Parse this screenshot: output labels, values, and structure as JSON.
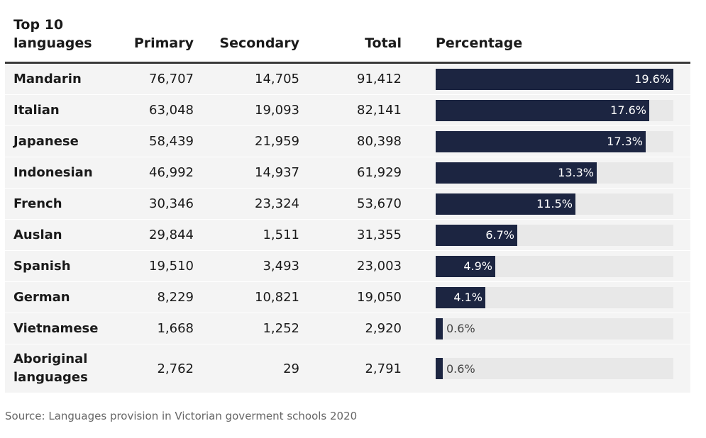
{
  "chart_data": {
    "type": "table",
    "title": "Top 10 languages",
    "columns": [
      "Top 10 languages",
      "Primary",
      "Secondary",
      "Total",
      "Percentage"
    ],
    "rows": [
      {
        "language": "Mandarin",
        "primary": "76,707",
        "secondary": "14,705",
        "total": "91,412",
        "percentage": 19.6,
        "percentage_label": "19.6%"
      },
      {
        "language": "Italian",
        "primary": "63,048",
        "secondary": "19,093",
        "total": "82,141",
        "percentage": 17.6,
        "percentage_label": "17.6%"
      },
      {
        "language": "Japanese",
        "primary": "58,439",
        "secondary": "21,959",
        "total": "80,398",
        "percentage": 17.3,
        "percentage_label": "17.3%"
      },
      {
        "language": "Indonesian",
        "primary": "46,992",
        "secondary": "14,937",
        "total": "61,929",
        "percentage": 13.3,
        "percentage_label": "13.3%"
      },
      {
        "language": "French",
        "primary": "30,346",
        "secondary": "23,324",
        "total": "53,670",
        "percentage": 11.5,
        "percentage_label": "11.5%"
      },
      {
        "language": "Auslan",
        "primary": "29,844",
        "secondary": "1,511",
        "total": "31,355",
        "percentage": 6.7,
        "percentage_label": "6.7%"
      },
      {
        "language": "Spanish",
        "primary": "19,510",
        "secondary": "3,493",
        "total": "23,003",
        "percentage": 4.9,
        "percentage_label": "4.9%"
      },
      {
        "language": "German",
        "primary": "8,229",
        "secondary": "10,821",
        "total": "19,050",
        "percentage": 4.1,
        "percentage_label": "4.1%"
      },
      {
        "language": "Vietnamese",
        "primary": "1,668",
        "secondary": "1,252",
        "total": "2,920",
        "percentage": 0.6,
        "percentage_label": "0.6%"
      },
      {
        "language": "Aboriginal languages",
        "primary": "2,762",
        "secondary": "29",
        "total": "2,791",
        "percentage": 0.6,
        "percentage_label": "0.6%"
      }
    ],
    "bar_max": 19.6,
    "bar_color": "#1c2541",
    "track_color": "#e8e8e8"
  },
  "source": "Source: Languages provision in Victorian goverment schools 2020"
}
